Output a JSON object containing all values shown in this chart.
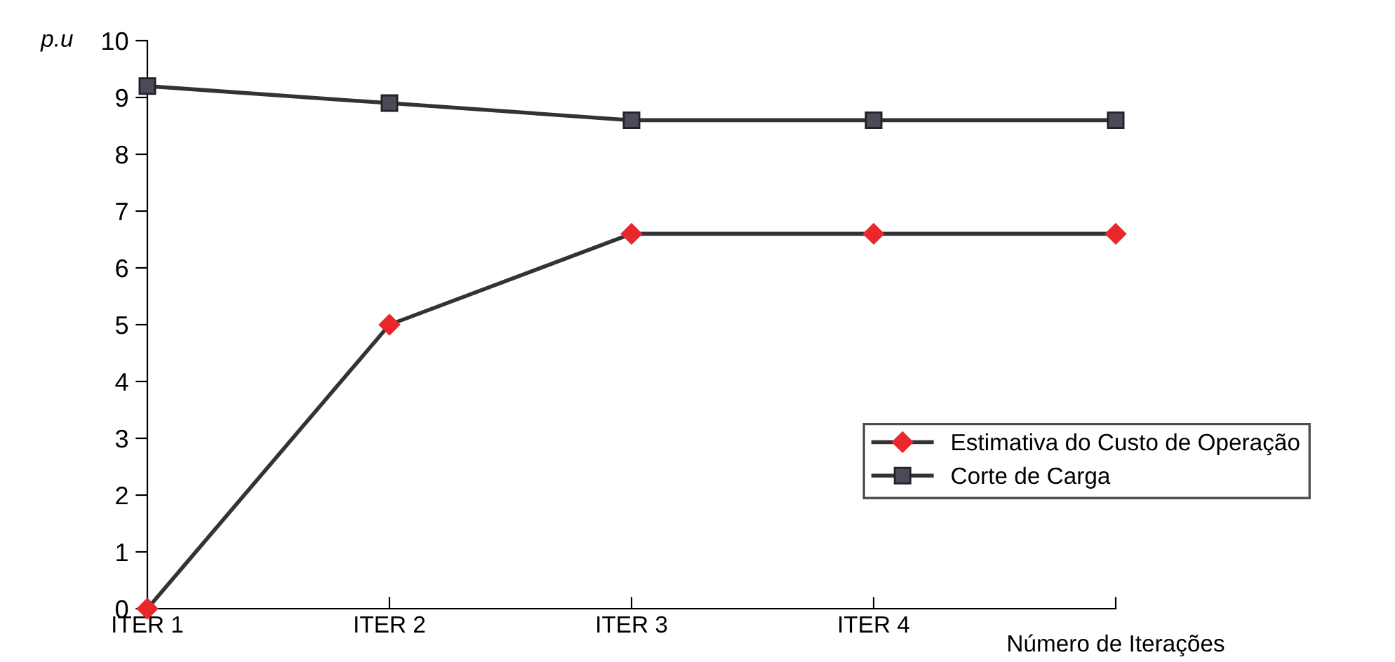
{
  "chart_data": {
    "type": "line",
    "ylabel": "p.u",
    "xlabel": "Número de Iterações",
    "categories": [
      "ITER 1",
      "ITER 2",
      "ITER 3",
      "ITER 4",
      null
    ],
    "series": [
      {
        "name": "Estimativa do Custo de Operação",
        "color": "#e8282c",
        "marker": "diamond",
        "values": [
          0,
          5.0,
          6.6,
          6.6,
          6.6
        ]
      },
      {
        "name": "Corte de Carga",
        "color": "#4a4a5a",
        "marker": "square",
        "values": [
          9.2,
          8.9,
          8.6,
          8.6,
          8.6
        ]
      }
    ],
    "ylim": [
      0,
      10
    ],
    "yticks": [
      0,
      1,
      2,
      3,
      4,
      5,
      6,
      7,
      8,
      9,
      10
    ],
    "grid": false,
    "legend": "right",
    "line_style": "solid"
  }
}
